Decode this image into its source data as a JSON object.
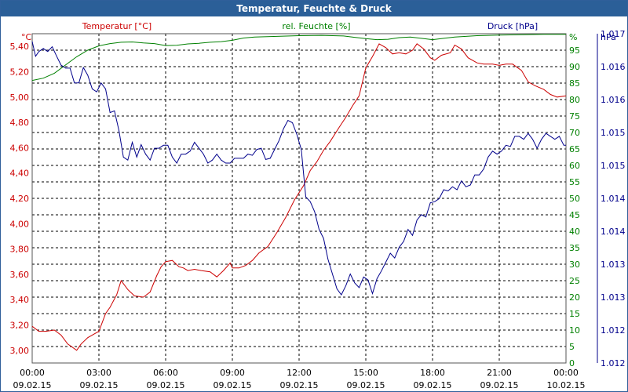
{
  "window": {
    "title": "Temperatur, Feuchte & Druck"
  },
  "colors": {
    "temperature": "#cc0000",
    "humidity": "#008000",
    "pressure": "#00008b",
    "title_bar": "#2b5f98",
    "grid": "#000000"
  },
  "chart_data": {
    "type": "line",
    "title": "Temperatur, Feuchte & Druck",
    "grid": true,
    "x_ticks": [
      {
        "time": "00:00",
        "date": "09.02.15"
      },
      {
        "time": "03:00",
        "date": "09.02.15"
      },
      {
        "time": "06:00",
        "date": "09.02.15"
      },
      {
        "time": "09:00",
        "date": "09.02.15"
      },
      {
        "time": "12:00",
        "date": "09.02.15"
      },
      {
        "time": "15:00",
        "date": "09.02.15"
      },
      {
        "time": "18:00",
        "date": "09.02.15"
      },
      {
        "time": "21:00",
        "date": "09.02.15"
      },
      {
        "time": "00:00",
        "date": "10.02.15"
      }
    ],
    "x_range_hours": [
      0,
      24
    ],
    "axes": {
      "left": {
        "label": "Temperatur [°C]",
        "unit": "°C",
        "range": [
          2.9,
          5.5
        ],
        "ticks": [
          "3,00",
          "3,20",
          "3,40",
          "3,60",
          "3,80",
          "4,00",
          "4,20",
          "4,40",
          "4,60",
          "4,80",
          "5,00",
          "5,20",
          "5,40"
        ]
      },
      "right1": {
        "label": "rel. Feuchte [%]",
        "unit": "%",
        "range": [
          0,
          100
        ],
        "ticks": [
          "0",
          "5",
          "10",
          "15",
          "20",
          "25",
          "30",
          "35",
          "40",
          "45",
          "50",
          "55",
          "60",
          "65",
          "70",
          "75",
          "80",
          "85",
          "90",
          "95",
          "%"
        ]
      },
      "right2": {
        "label": "Druck [hPa]",
        "unit": "hPa",
        "range": [
          1011.95,
          1017.5
        ],
        "ticks": [
          "1.012",
          "1.012",
          "1.013",
          "1.013",
          "1.014",
          "1.014",
          "1.015",
          "1.015",
          "1.016",
          "1.016",
          "1.017"
        ]
      }
    },
    "series": [
      {
        "name": "Temperatur [°C]",
        "axis": "left",
        "points": [
          [
            0,
            3.19
          ],
          [
            0.3,
            3.15
          ],
          [
            0.6,
            3.15
          ],
          [
            1.0,
            3.16
          ],
          [
            1.3,
            3.12
          ],
          [
            1.6,
            3.05
          ],
          [
            2.0,
            3.0
          ],
          [
            2.2,
            3.05
          ],
          [
            2.5,
            3.1
          ],
          [
            2.8,
            3.13
          ],
          [
            3.0,
            3.15
          ],
          [
            3.3,
            3.29
          ],
          [
            3.5,
            3.34
          ],
          [
            3.8,
            3.44
          ],
          [
            4.0,
            3.55
          ],
          [
            4.3,
            3.48
          ],
          [
            4.6,
            3.43
          ],
          [
            5.0,
            3.42
          ],
          [
            5.3,
            3.46
          ],
          [
            5.6,
            3.59
          ],
          [
            5.8,
            3.66
          ],
          [
            6.0,
            3.7
          ],
          [
            6.3,
            3.71
          ],
          [
            6.6,
            3.66
          ],
          [
            6.8,
            3.65
          ],
          [
            7.0,
            3.63
          ],
          [
            7.3,
            3.64
          ],
          [
            7.6,
            3.63
          ],
          [
            8.0,
            3.62
          ],
          [
            8.3,
            3.58
          ],
          [
            8.6,
            3.63
          ],
          [
            8.9,
            3.69
          ],
          [
            9.0,
            3.65
          ],
          [
            9.3,
            3.65
          ],
          [
            9.6,
            3.67
          ],
          [
            9.9,
            3.71
          ],
          [
            10.2,
            3.77
          ],
          [
            10.6,
            3.82
          ],
          [
            11.0,
            3.93
          ],
          [
            11.4,
            4.05
          ],
          [
            11.8,
            4.19
          ],
          [
            12.2,
            4.3
          ],
          [
            12.5,
            4.42
          ],
          [
            12.8,
            4.49
          ],
          [
            13.1,
            4.58
          ],
          [
            13.4,
            4.65
          ],
          [
            13.8,
            4.76
          ],
          [
            14.1,
            4.84
          ],
          [
            14.4,
            4.93
          ],
          [
            14.7,
            5.01
          ],
          [
            15.0,
            5.23
          ],
          [
            15.3,
            5.32
          ],
          [
            15.6,
            5.42
          ],
          [
            15.9,
            5.39
          ],
          [
            16.2,
            5.34
          ],
          [
            16.5,
            5.35
          ],
          [
            16.8,
            5.34
          ],
          [
            17.1,
            5.37
          ],
          [
            17.3,
            5.42
          ],
          [
            17.6,
            5.38
          ],
          [
            17.9,
            5.31
          ],
          [
            18.1,
            5.29
          ],
          [
            18.4,
            5.33
          ],
          [
            18.8,
            5.35
          ],
          [
            19.0,
            5.41
          ],
          [
            19.3,
            5.38
          ],
          [
            19.6,
            5.31
          ],
          [
            20.0,
            5.27
          ],
          [
            20.3,
            5.26
          ],
          [
            20.7,
            5.26
          ],
          [
            21.0,
            5.25
          ],
          [
            21.3,
            5.26
          ],
          [
            21.6,
            5.26
          ],
          [
            22.0,
            5.21
          ],
          [
            22.3,
            5.12
          ],
          [
            22.6,
            5.09
          ],
          [
            23.0,
            5.06
          ],
          [
            23.3,
            5.02
          ],
          [
            23.6,
            5.0
          ],
          [
            24.0,
            5.01
          ]
        ]
      },
      {
        "name": "rel. Feuchte [%]",
        "axis": "right1",
        "points": [
          [
            0,
            85.8
          ],
          [
            0.5,
            86.5
          ],
          [
            1.0,
            88.0
          ],
          [
            1.5,
            90.5
          ],
          [
            2.0,
            93.0
          ],
          [
            2.5,
            95.0
          ],
          [
            3.0,
            96.3
          ],
          [
            3.5,
            97.0
          ],
          [
            4.0,
            97.4
          ],
          [
            4.5,
            97.5
          ],
          [
            5.0,
            97.2
          ],
          [
            5.5,
            97.0
          ],
          [
            6.0,
            96.4
          ],
          [
            6.5,
            96.5
          ],
          [
            7.0,
            96.9
          ],
          [
            7.5,
            97.1
          ],
          [
            8.0,
            97.4
          ],
          [
            8.5,
            97.6
          ],
          [
            9.0,
            98.0
          ],
          [
            9.5,
            98.7
          ],
          [
            10.0,
            99.0
          ],
          [
            11.0,
            99.2
          ],
          [
            12.0,
            99.4
          ],
          [
            13.0,
            99.5
          ],
          [
            14.0,
            99.3
          ],
          [
            14.5,
            98.9
          ],
          [
            15.0,
            98.5
          ],
          [
            15.5,
            98.2
          ],
          [
            16.0,
            98.3
          ],
          [
            16.5,
            98.8
          ],
          [
            17.0,
            99.0
          ],
          [
            17.5,
            98.6
          ],
          [
            18.0,
            98.2
          ],
          [
            18.5,
            98.6
          ],
          [
            19.0,
            99.0
          ],
          [
            20.0,
            99.4
          ],
          [
            21.0,
            99.6
          ],
          [
            22.0,
            99.7
          ],
          [
            23.0,
            99.8
          ],
          [
            24.0,
            99.8
          ]
        ]
      },
      {
        "name": "Druck [hPa]",
        "axis": "right2",
        "points": [
          [
            0,
            1017.37
          ],
          [
            0.15,
            1017.12
          ],
          [
            0.3,
            1017.2
          ],
          [
            0.5,
            1017.25
          ],
          [
            0.7,
            1017.2
          ],
          [
            0.9,
            1017.28
          ],
          [
            1.1,
            1017.12
          ],
          [
            1.3,
            1016.97
          ],
          [
            1.5,
            1016.92
          ],
          [
            1.7,
            1016.92
          ],
          [
            1.9,
            1016.67
          ],
          [
            2.1,
            1016.67
          ],
          [
            2.3,
            1016.93
          ],
          [
            2.5,
            1016.8
          ],
          [
            2.7,
            1016.57
          ],
          [
            2.9,
            1016.52
          ],
          [
            3.1,
            1016.67
          ],
          [
            3.3,
            1016.57
          ],
          [
            3.5,
            1016.17
          ],
          [
            3.7,
            1016.2
          ],
          [
            3.9,
            1015.87
          ],
          [
            4.1,
            1015.42
          ],
          [
            4.3,
            1015.37
          ],
          [
            4.5,
            1015.67
          ],
          [
            4.7,
            1015.42
          ],
          [
            4.9,
            1015.63
          ],
          [
            5.1,
            1015.47
          ],
          [
            5.3,
            1015.37
          ],
          [
            5.5,
            1015.57
          ],
          [
            5.7,
            1015.57
          ],
          [
            5.9,
            1015.62
          ],
          [
            6.1,
            1015.62
          ],
          [
            6.3,
            1015.42
          ],
          [
            6.5,
            1015.32
          ],
          [
            6.7,
            1015.47
          ],
          [
            6.9,
            1015.47
          ],
          [
            7.1,
            1015.52
          ],
          [
            7.3,
            1015.67
          ],
          [
            7.5,
            1015.57
          ],
          [
            7.7,
            1015.47
          ],
          [
            7.9,
            1015.32
          ],
          [
            8.1,
            1015.37
          ],
          [
            8.3,
            1015.47
          ],
          [
            8.5,
            1015.37
          ],
          [
            8.7,
            1015.32
          ],
          [
            8.9,
            1015.32
          ],
          [
            9.1,
            1015.4
          ],
          [
            9.3,
            1015.4
          ],
          [
            9.5,
            1015.4
          ],
          [
            9.7,
            1015.47
          ],
          [
            9.9,
            1015.45
          ],
          [
            10.1,
            1015.55
          ],
          [
            10.3,
            1015.57
          ],
          [
            10.5,
            1015.38
          ],
          [
            10.7,
            1015.4
          ],
          [
            10.9,
            1015.55
          ],
          [
            11.1,
            1015.7
          ],
          [
            11.3,
            1015.9
          ],
          [
            11.5,
            1016.04
          ],
          [
            11.7,
            1016.0
          ],
          [
            11.9,
            1015.8
          ],
          [
            12.1,
            1015.55
          ],
          [
            12.3,
            1014.75
          ],
          [
            12.5,
            1014.67
          ],
          [
            12.7,
            1014.5
          ],
          [
            12.9,
            1014.2
          ],
          [
            13.1,
            1014.05
          ],
          [
            13.3,
            1013.7
          ],
          [
            13.5,
            1013.45
          ],
          [
            13.7,
            1013.2
          ],
          [
            13.9,
            1013.1
          ],
          [
            14.1,
            1013.25
          ],
          [
            14.3,
            1013.45
          ],
          [
            14.5,
            1013.3
          ],
          [
            14.7,
            1013.22
          ],
          [
            14.9,
            1013.4
          ],
          [
            15.1,
            1013.35
          ],
          [
            15.3,
            1013.12
          ],
          [
            15.5,
            1013.37
          ],
          [
            15.7,
            1013.5
          ],
          [
            15.9,
            1013.65
          ],
          [
            16.1,
            1013.8
          ],
          [
            16.3,
            1013.72
          ],
          [
            16.5,
            1013.9
          ],
          [
            16.7,
            1014.0
          ],
          [
            16.9,
            1014.2
          ],
          [
            17.1,
            1014.1
          ],
          [
            17.3,
            1014.36
          ],
          [
            17.5,
            1014.45
          ],
          [
            17.7,
            1014.41
          ],
          [
            17.9,
            1014.65
          ],
          [
            18.1,
            1014.67
          ],
          [
            18.3,
            1014.72
          ],
          [
            18.5,
            1014.87
          ],
          [
            18.7,
            1014.85
          ],
          [
            18.9,
            1014.92
          ],
          [
            19.1,
            1014.87
          ],
          [
            19.3,
            1015.02
          ],
          [
            19.5,
            1014.92
          ],
          [
            19.7,
            1014.95
          ],
          [
            19.9,
            1015.12
          ],
          [
            20.1,
            1015.12
          ],
          [
            20.3,
            1015.22
          ],
          [
            20.5,
            1015.42
          ],
          [
            20.7,
            1015.52
          ],
          [
            20.9,
            1015.47
          ],
          [
            21.1,
            1015.52
          ],
          [
            21.3,
            1015.62
          ],
          [
            21.5,
            1015.6
          ],
          [
            21.7,
            1015.77
          ],
          [
            21.9,
            1015.77
          ],
          [
            22.1,
            1015.72
          ],
          [
            22.3,
            1015.82
          ],
          [
            22.5,
            1015.72
          ],
          [
            22.7,
            1015.57
          ],
          [
            22.9,
            1015.72
          ],
          [
            23.1,
            1015.82
          ],
          [
            23.3,
            1015.77
          ],
          [
            23.5,
            1015.72
          ],
          [
            23.7,
            1015.77
          ],
          [
            23.9,
            1015.62
          ],
          [
            24.0,
            1015.62
          ]
        ]
      }
    ]
  }
}
